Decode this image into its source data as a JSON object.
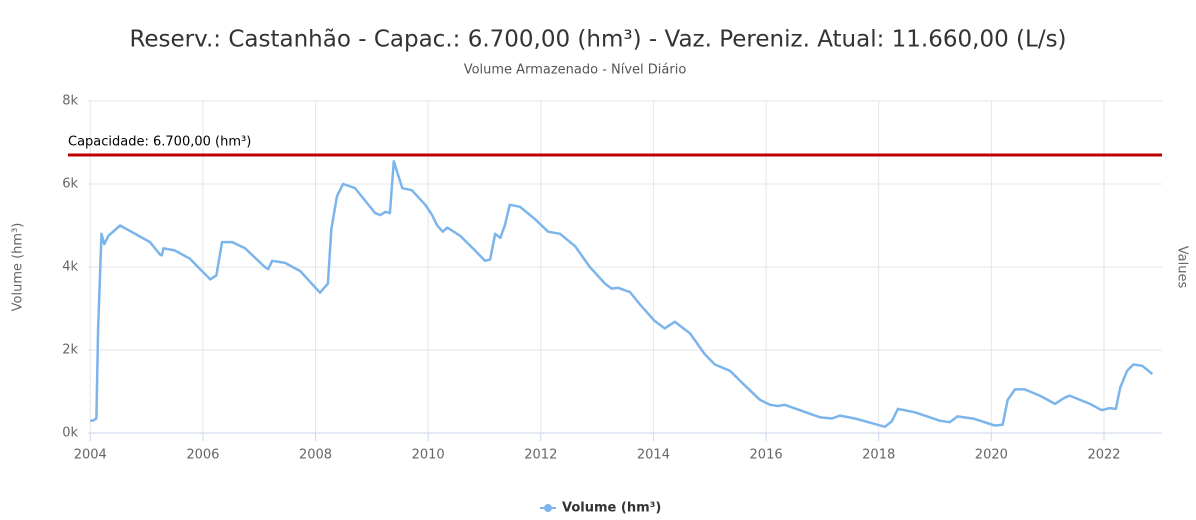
{
  "chart_data": {
    "type": "line",
    "title": "Reserv.: Castanhão - Capac.: 6.700,00 (hm³) - Vaz. Pereniz. Atual: 11.660,00 (L/s)",
    "subtitle": "Volume Armazenado - Nível Diário",
    "y_label": "Volume (hm³)",
    "y2_label": "Values",
    "x": [
      2004.0,
      2004.05,
      2004.11,
      2004.14,
      2004.2,
      2004.25,
      2004.32,
      2004.53,
      2005.06,
      2005.24,
      2005.27,
      2005.3,
      2005.5,
      2005.77,
      2006.13,
      2006.24,
      2006.34,
      2006.52,
      2006.75,
      2007.1,
      2007.16,
      2007.23,
      2007.46,
      2007.73,
      2008.08,
      2008.22,
      2008.28,
      2008.38,
      2008.49,
      2008.7,
      2009.06,
      2009.15,
      2009.24,
      2009.32,
      2009.39,
      2009.54,
      2009.71,
      2009.95,
      2010.07,
      2010.16,
      2010.26,
      2010.34,
      2010.57,
      2010.83,
      2011.01,
      2011.1,
      2011.19,
      2011.28,
      2011.36,
      2011.45,
      2011.63,
      2011.9,
      2012.13,
      2012.34,
      2012.61,
      2012.87,
      2013.14,
      2013.26,
      2013.37,
      2013.58,
      2013.76,
      2014.02,
      2014.2,
      2014.38,
      2014.65,
      2014.91,
      2015.09,
      2015.36,
      2015.62,
      2015.89,
      2016.07,
      2016.21,
      2016.33,
      2016.6,
      2016.95,
      2017.17,
      2017.31,
      2017.58,
      2017.84,
      2018.11,
      2018.23,
      2018.34,
      2018.64,
      2019.08,
      2019.26,
      2019.4,
      2019.7,
      2020.06,
      2020.2,
      2020.29,
      2020.42,
      2020.59,
      2020.86,
      2021.13,
      2021.3,
      2021.39,
      2021.75,
      2021.96,
      2022.1,
      2022.21,
      2022.29,
      2022.41,
      2022.52,
      2022.68,
      2022.86
    ],
    "series": [
      {
        "name": "Volume (hm³)",
        "color": "#7cb5ec",
        "values": [
          300,
          300,
          350,
          2500,
          4800,
          4550,
          4750,
          5000,
          4600,
          4300,
          4280,
          4450,
          4400,
          4200,
          3700,
          3800,
          4600,
          4600,
          4450,
          4000,
          3950,
          4150,
          4100,
          3900,
          3380,
          3600,
          4900,
          5700,
          6000,
          5900,
          5300,
          5250,
          5330,
          5300,
          6550,
          5900,
          5850,
          5500,
          5250,
          5000,
          4850,
          4950,
          4750,
          4400,
          4150,
          4180,
          4800,
          4700,
          5000,
          5500,
          5450,
          5150,
          4850,
          4800,
          4500,
          4000,
          3600,
          3480,
          3500,
          3400,
          3100,
          2700,
          2520,
          2680,
          2400,
          1900,
          1650,
          1500,
          1150,
          800,
          680,
          650,
          680,
          550,
          380,
          350,
          420,
          350,
          250,
          150,
          280,
          580,
          500,
          300,
          260,
          400,
          340,
          180,
          200,
          800,
          1050,
          1050,
          900,
          700,
          850,
          900,
          700,
          550,
          600,
          580,
          1100,
          1500,
          1650,
          1620,
          1420
        ]
      }
    ],
    "plot_line": {
      "value": 6700,
      "label": "Capacidade: 6.700,00 (hm³)",
      "color": "#c00000"
    },
    "xlim": [
      2003.96,
      2023.03
    ],
    "xticks": [
      2004,
      2006,
      2008,
      2010,
      2012,
      2014,
      2016,
      2018,
      2020,
      2022
    ],
    "ylim": [
      0,
      8000
    ],
    "yticks": [
      {
        "value": 0,
        "label": "0k"
      },
      {
        "value": 2000,
        "label": "2k"
      },
      {
        "value": 4000,
        "label": "4k"
      },
      {
        "value": 6000,
        "label": "6k"
      },
      {
        "value": 8000,
        "label": "8k"
      }
    ],
    "grid": true,
    "legend": "bottom"
  }
}
